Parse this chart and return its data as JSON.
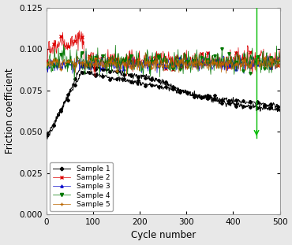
{
  "title": "",
  "xlabel": "Cycle number",
  "ylabel": "Friction coefficient",
  "xlim": [
    0,
    500
  ],
  "ylim": [
    0.0,
    0.125
  ],
  "yticks": [
    0.0,
    0.025,
    0.05,
    0.075,
    0.1,
    0.125
  ],
  "xticks": [
    0,
    100,
    200,
    300,
    400,
    500
  ],
  "legend_labels": [
    "Sample 1",
    "Sample 2",
    "Sample 3",
    "Sample 4",
    "Sample 5"
  ],
  "colors": {
    "sample1": "#000000",
    "sample2": "#dd0000",
    "sample3": "#1111cc",
    "sample4": "#007700",
    "sample5": "#bb6600"
  },
  "bg_color": "#e8e8e8",
  "plot_bg": "#ffffff",
  "vline_x": 450,
  "vline_color": "#00bb00",
  "vline_ymin": 0.046,
  "vline_ymax": 0.125,
  "noise_s2": 0.003,
  "noise_s3": 0.002,
  "noise_s4": 0.0035,
  "noise_s5": 0.002
}
